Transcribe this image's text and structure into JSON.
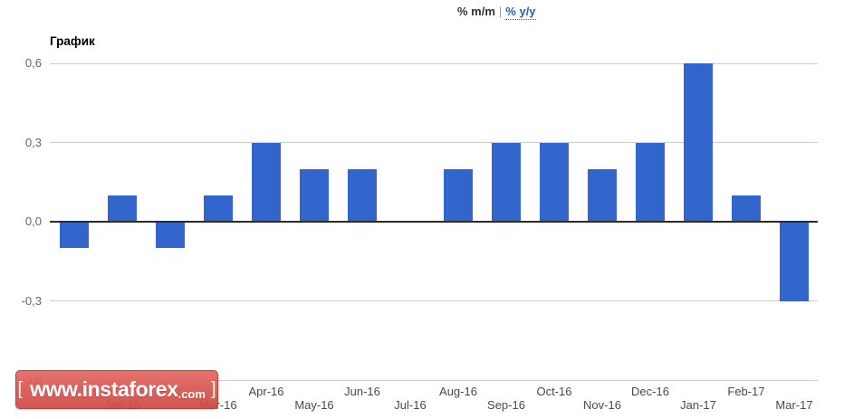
{
  "header": {
    "tabs": [
      {
        "label": "% m/m",
        "active": true
      },
      {
        "label": "% y/y",
        "active": false
      }
    ],
    "separator": "|"
  },
  "chart": {
    "title": "График"
  },
  "chart_data": {
    "type": "bar",
    "categories": [
      "",
      "Jan-16",
      "",
      "Mar-16",
      "Apr-16",
      "May-16",
      "Jun-16",
      "Jul-16",
      "Aug-16",
      "Sep-16",
      "Oct-16",
      "Nov-16",
      "Dec-16",
      "Jan-17",
      "Feb-17",
      "Mar-17"
    ],
    "values": [
      -0.1,
      0.1,
      -0.1,
      0.1,
      0.3,
      0.2,
      0.2,
      0,
      0.2,
      0.3,
      0.3,
      0.2,
      0.3,
      0.6,
      0.1,
      -0.3
    ],
    "title": "График",
    "xlabel": "",
    "ylabel": "",
    "ylim": [
      -0.6,
      0.6
    ],
    "baseline": 0,
    "grid": true,
    "legend_position": "none",
    "y_ticks": [
      {
        "label": "0,6",
        "value": 0.6
      },
      {
        "label": "0,3",
        "value": 0.3
      },
      {
        "label": "0,0",
        "value": 0
      },
      {
        "label": "-0,3",
        "value": -0.3
      },
      {
        "label": "-0,6",
        "value": -0.6
      }
    ],
    "x_tick_rows": "alternating, even indexes upper row, odd indexes lower row"
  },
  "watermark": {
    "bracket_left": "[",
    "domain": "www.instaforex",
    "tld": ".com",
    "bracket_right": "]"
  },
  "colors": {
    "bar": "#3366cc",
    "gridline": "#cccccc",
    "zero_line": "#2b2b2b",
    "axis_label": "#666666",
    "tab_active": "#333333",
    "link": "#2b5fb8",
    "watermark_red": "#d9534f",
    "watermark_border": "#aa3c37",
    "watermark_text": "#ffffff"
  }
}
